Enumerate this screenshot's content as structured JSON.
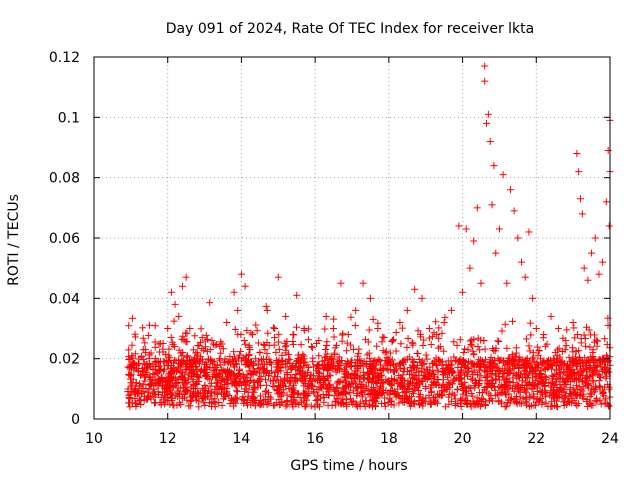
{
  "chart_data": {
    "type": "scatter",
    "title": "Day 091 of 2024, Rate Of TEC Index for receiver lkta",
    "xlabel": "GPS time / hours",
    "ylabel": "ROTI / TECUs",
    "xlim": [
      10,
      24
    ],
    "ylim": [
      0,
      0.12
    ],
    "x_ticks": [
      10,
      12,
      14,
      16,
      18,
      20,
      22,
      24
    ],
    "y_ticks": [
      0,
      0.02,
      0.04,
      0.06,
      0.08,
      0.1,
      0.12
    ],
    "x_tick_labels": [
      "10",
      "12",
      "14",
      "16",
      "18",
      "20",
      "22",
      "24"
    ],
    "y_tick_labels": [
      "0",
      "0.02",
      "0.04",
      "0.06",
      "0.08",
      "0.1",
      "0.12"
    ],
    "grid": true,
    "marker": "plus",
    "marker_color": "#ff0000",
    "data_range_x": [
      10.9,
      24.0
    ],
    "series": [
      {
        "name": "ROTI",
        "points": [
          [
            11.0,
            0.012
          ],
          [
            11.2,
            0.016
          ],
          [
            11.4,
            0.022
          ],
          [
            11.6,
            0.018
          ],
          [
            11.8,
            0.025
          ],
          [
            12.0,
            0.03
          ],
          [
            12.1,
            0.042
          ],
          [
            12.2,
            0.038
          ],
          [
            12.3,
            0.034
          ],
          [
            12.4,
            0.044
          ],
          [
            12.5,
            0.047
          ],
          [
            12.6,
            0.03
          ],
          [
            12.8,
            0.022
          ],
          [
            13.0,
            0.018
          ],
          [
            13.2,
            0.026
          ],
          [
            13.4,
            0.02
          ],
          [
            13.6,
            0.032
          ],
          [
            13.8,
            0.042
          ],
          [
            13.9,
            0.036
          ],
          [
            14.0,
            0.048
          ],
          [
            14.1,
            0.044
          ],
          [
            14.3,
            0.028
          ],
          [
            14.5,
            0.022
          ],
          [
            14.7,
            0.036
          ],
          [
            14.9,
            0.03
          ],
          [
            15.0,
            0.047
          ],
          [
            15.2,
            0.034
          ],
          [
            15.4,
            0.028
          ],
          [
            15.5,
            0.041
          ],
          [
            15.7,
            0.03
          ],
          [
            15.9,
            0.024
          ],
          [
            16.1,
            0.026
          ],
          [
            16.3,
            0.034
          ],
          [
            16.5,
            0.03
          ],
          [
            16.7,
            0.045
          ],
          [
            16.9,
            0.028
          ],
          [
            17.1,
            0.036
          ],
          [
            17.3,
            0.045
          ],
          [
            17.5,
            0.04
          ],
          [
            17.7,
            0.03
          ],
          [
            17.9,
            0.022
          ],
          [
            18.1,
            0.026
          ],
          [
            18.3,
            0.032
          ],
          [
            18.5,
            0.036
          ],
          [
            18.7,
            0.043
          ],
          [
            18.9,
            0.04
          ],
          [
            19.1,
            0.03
          ],
          [
            19.3,
            0.028
          ],
          [
            19.5,
            0.032
          ],
          [
            19.7,
            0.036
          ],
          [
            19.9,
            0.064
          ],
          [
            20.0,
            0.042
          ],
          [
            20.1,
            0.063
          ],
          [
            20.2,
            0.05
          ],
          [
            20.3,
            0.059
          ],
          [
            20.4,
            0.07
          ],
          [
            20.5,
            0.045
          ],
          [
            20.6,
            0.117
          ],
          [
            20.6,
            0.112
          ],
          [
            20.65,
            0.098
          ],
          [
            20.7,
            0.101
          ],
          [
            20.75,
            0.092
          ],
          [
            20.8,
            0.071
          ],
          [
            20.85,
            0.084
          ],
          [
            20.9,
            0.055
          ],
          [
            21.0,
            0.063
          ],
          [
            21.1,
            0.081
          ],
          [
            21.2,
            0.045
          ],
          [
            21.3,
            0.076
          ],
          [
            21.4,
            0.069
          ],
          [
            21.5,
            0.06
          ],
          [
            21.6,
            0.052
          ],
          [
            21.7,
            0.047
          ],
          [
            21.8,
            0.062
          ],
          [
            21.9,
            0.04
          ],
          [
            22.0,
            0.03
          ],
          [
            22.2,
            0.028
          ],
          [
            22.4,
            0.034
          ],
          [
            22.6,
            0.03
          ],
          [
            22.8,
            0.026
          ],
          [
            23.0,
            0.032
          ],
          [
            23.1,
            0.088
          ],
          [
            23.15,
            0.082
          ],
          [
            23.2,
            0.073
          ],
          [
            23.25,
            0.068
          ],
          [
            23.3,
            0.05
          ],
          [
            23.4,
            0.046
          ],
          [
            23.5,
            0.055
          ],
          [
            23.6,
            0.06
          ],
          [
            23.7,
            0.048
          ],
          [
            23.8,
            0.052
          ],
          [
            23.9,
            0.072
          ],
          [
            23.95,
            0.089
          ],
          [
            24.0,
            0.099
          ],
          [
            24.0,
            0.082
          ],
          [
            23.98,
            0.064
          ]
        ]
      }
    ]
  }
}
